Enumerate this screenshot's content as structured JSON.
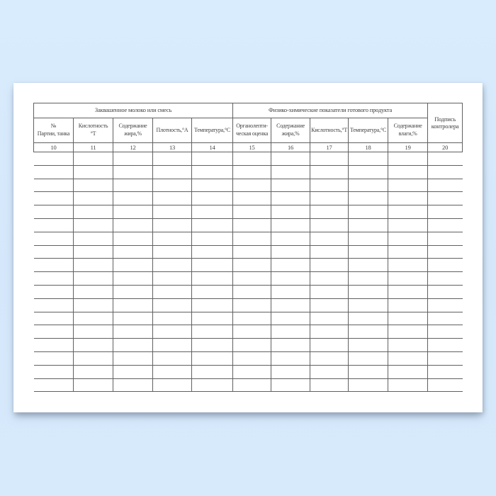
{
  "colors": {
    "background": "#d7eafc",
    "paper": "#ffffff",
    "grid_line": "#606060",
    "text": "#3f3f3f"
  },
  "table": {
    "column_count": 11,
    "body_rows": 18,
    "section1": {
      "title": "Заквашенное молоко или смесь",
      "columns": [
        {
          "label": "№\nПартии, танка",
          "number": "10"
        },
        {
          "label": "Кислотность\n°Т",
          "number": "11"
        },
        {
          "label": "Содержание\nжира,%",
          "number": "12"
        },
        {
          "label": "Плотность,°А",
          "number": "13"
        },
        {
          "label": "Температура,°С",
          "number": "14"
        }
      ]
    },
    "section2": {
      "title": "Физико-химические показатели готового продукта",
      "columns": [
        {
          "label": "Органолепти-\nческая оценка",
          "number": "15"
        },
        {
          "label": "Содержание\nжира,%",
          "number": "16"
        },
        {
          "label": "Кислотность,°Т",
          "number": "17"
        },
        {
          "label": "Температура,°С",
          "number": "18"
        },
        {
          "label": "Содержание\nвлаги,%",
          "number": "19"
        }
      ]
    },
    "signature_column": {
      "label": "Подпись\nконтролера",
      "number": "20"
    }
  }
}
